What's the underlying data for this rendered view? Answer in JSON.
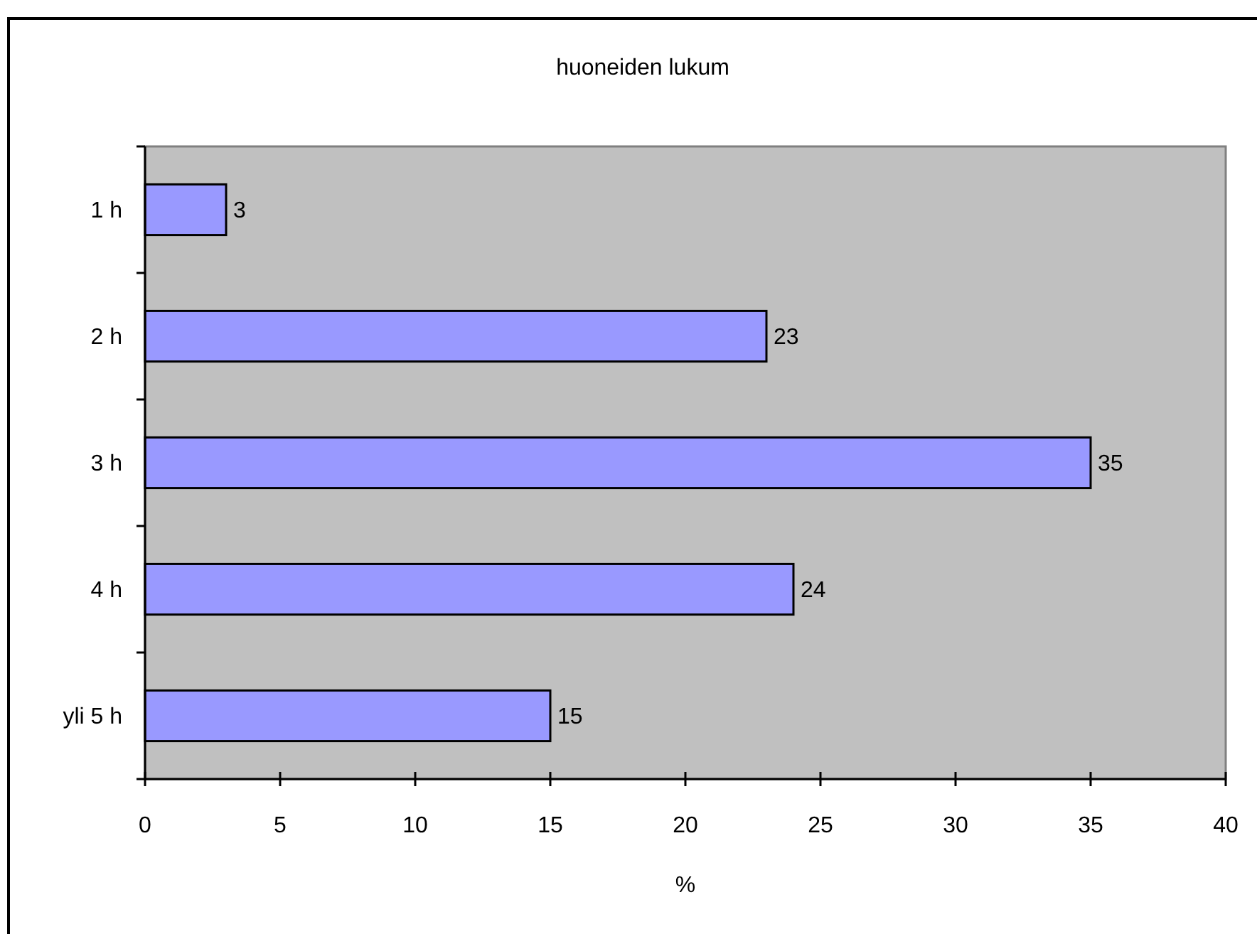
{
  "chart_data": {
    "type": "bar",
    "orientation": "horizontal",
    "title": "huoneiden lukum",
    "xlabel": "%",
    "categories": [
      "1 h",
      "2 h",
      "3 h",
      "4 h",
      "yli 5 h"
    ],
    "values": [
      3,
      23,
      35,
      24,
      15
    ],
    "color": "#9999ff",
    "xlim": [
      0,
      40
    ],
    "xticks": [
      0,
      5,
      10,
      15,
      20,
      25,
      30,
      35,
      40
    ],
    "data_labels": true
  }
}
